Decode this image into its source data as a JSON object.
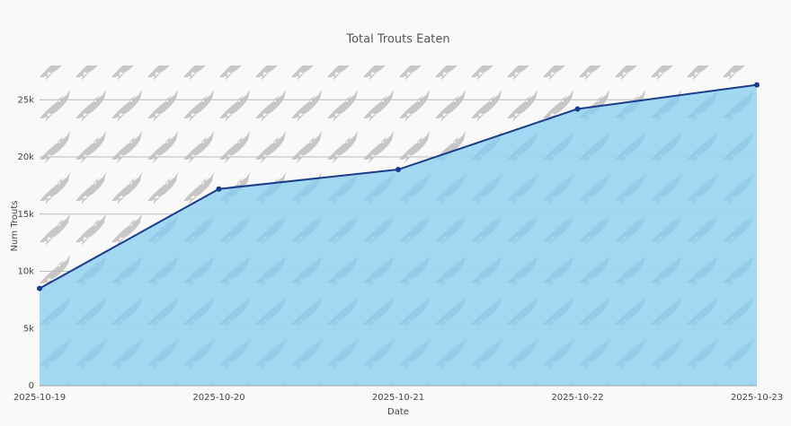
{
  "chart_data": {
    "type": "area",
    "title": "Total Trouts Eaten",
    "x_label": "Date",
    "y_label": "Num Trouts",
    "categories": [
      "2025-10-19",
      "2025-10-20",
      "2025-10-21",
      "2025-10-22",
      "2025-10-23"
    ],
    "series": [
      {
        "name": "Total Trouts Eaten",
        "color": "#1a3c8c",
        "fill": "#9dd6f0",
        "values": [
          8500,
          17200,
          18900,
          24200,
          26300
        ]
      }
    ],
    "ylim": [
      0,
      28000
    ],
    "yticks": [
      0,
      {
        "value": 5000,
        "label": "5k"
      },
      {
        "value": 10000,
        "label": "10k"
      },
      {
        "value": 15000,
        "label": "15k"
      },
      {
        "value": 20000,
        "label": "20k"
      },
      {
        "value": 25000,
        "label": "25k"
      }
    ],
    "grid": true
  }
}
